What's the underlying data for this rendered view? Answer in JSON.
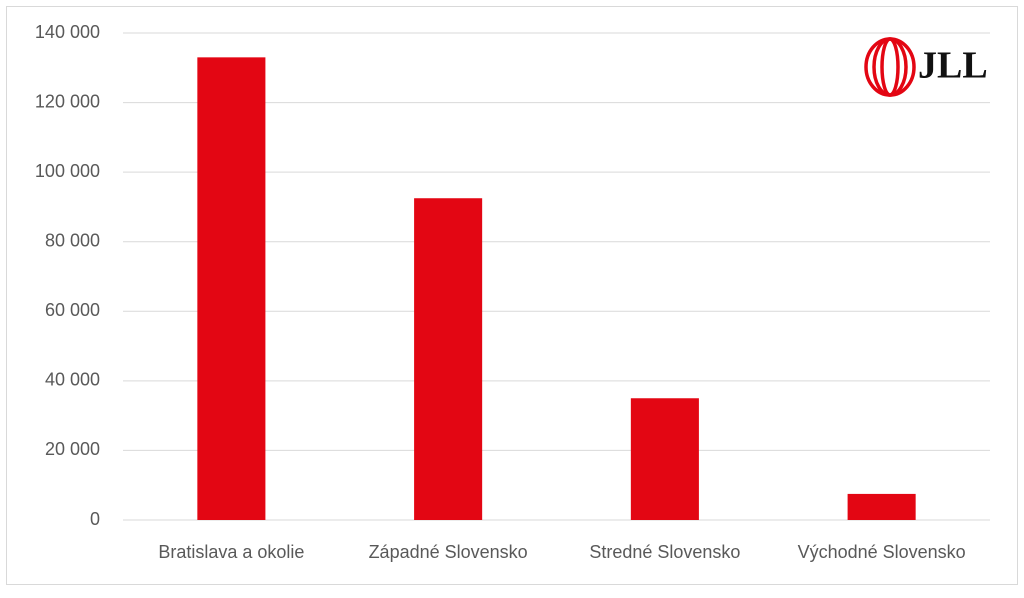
{
  "chart_data": {
    "type": "bar",
    "categories": [
      "Bratislava a okolie",
      "Západné Slovensko",
      "Stredné Slovensko",
      "Východné Slovensko"
    ],
    "values": [
      133000,
      92500,
      35000,
      7500
    ],
    "color": "#e30613",
    "ylim": [
      0,
      140000
    ],
    "yticks": [
      {
        "value": 0,
        "label": "0"
      },
      {
        "value": 20000,
        "label": "20 000"
      },
      {
        "value": 40000,
        "label": "40 000"
      },
      {
        "value": 60000,
        "label": "60 000"
      },
      {
        "value": 80000,
        "label": "80 000"
      },
      {
        "value": 100000,
        "label": "100 000"
      },
      {
        "value": 120000,
        "label": "120 000"
      },
      {
        "value": 140000,
        "label": "140 000"
      }
    ],
    "grid": true,
    "logo": "JLL"
  }
}
